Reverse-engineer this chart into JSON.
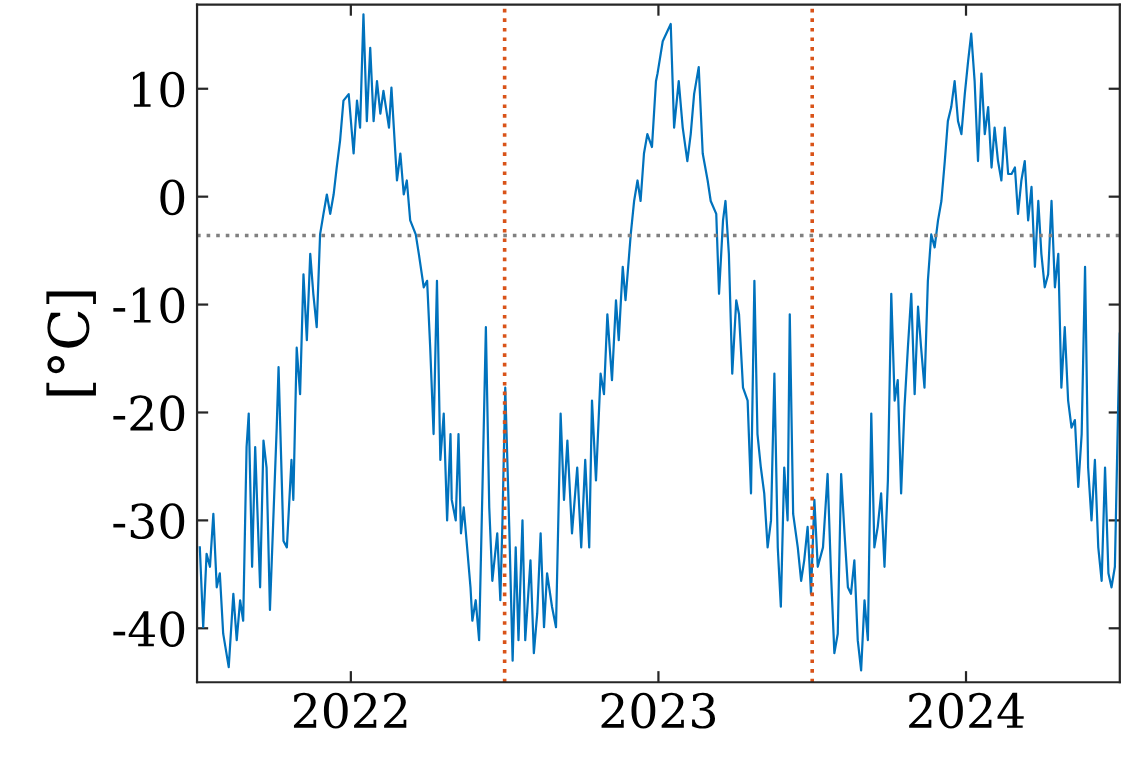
{
  "chart_data": {
    "type": "line",
    "ylabel": "[°C]",
    "xlim": [
      2021.5,
      2024.5
    ],
    "xticks": [
      2022,
      2023,
      2024
    ],
    "ylim": [
      -45,
      17.8
    ],
    "yticks": [
      -40,
      -30,
      -20,
      -10,
      0,
      10
    ],
    "line_style": "solid",
    "marker": "none",
    "ref_lines": [
      {
        "axis": "y",
        "value": -3.6,
        "color": "#808080",
        "line_style": "dotted"
      },
      {
        "axis": "x",
        "value": 2022.5,
        "color": "#d95319",
        "line_style": "dotted"
      },
      {
        "axis": "x",
        "value": 2023.5,
        "color": "#d95319",
        "line_style": "dotted"
      }
    ],
    "series": [
      {
        "color": "#0072bd",
        "x": [
          2021.509,
          2021.52,
          2021.531,
          2021.542,
          2021.553,
          2021.564,
          2021.574,
          2021.585,
          2021.603,
          2021.618,
          2021.629,
          2021.64,
          2021.65,
          2021.661,
          2021.668,
          2021.679,
          2021.689,
          2021.705,
          2021.716,
          2021.726,
          2021.737,
          2021.759,
          2021.765,
          2021.781,
          2021.792,
          2021.807,
          2021.813,
          2021.824,
          2021.835,
          2021.846,
          2021.857,
          2021.868,
          2021.878,
          2021.889,
          2021.9,
          2021.911,
          2021.922,
          2021.933,
          2021.944,
          2021.954,
          2021.965,
          2021.976,
          2021.993,
          2022.009,
          2022.02,
          2022.03,
          2022.041,
          2022.052,
          2022.063,
          2022.074,
          2022.085,
          2022.096,
          2022.106,
          2022.124,
          2022.132,
          2022.15,
          2022.161,
          2022.172,
          2022.182,
          2022.193,
          2022.211,
          2022.221,
          2022.237,
          2022.248,
          2022.258,
          2022.269,
          2022.28,
          2022.291,
          2022.302,
          2022.313,
          2022.324,
          2022.328,
          2022.341,
          2022.35,
          2022.358,
          2022.367,
          2022.378,
          2022.389,
          2022.395,
          2022.406,
          2022.417,
          2022.428,
          2022.439,
          2022.45,
          2022.46,
          2022.476,
          2022.486,
          2022.493,
          2022.502,
          2022.515,
          2022.526,
          2022.536,
          2022.545,
          2022.558,
          2022.567,
          2022.584,
          2022.595,
          2022.606,
          2022.617,
          2022.628,
          2022.638,
          2022.654,
          2022.667,
          2022.682,
          2022.693,
          2022.704,
          2022.719,
          2022.736,
          2022.749,
          2022.762,
          2022.775,
          2022.784,
          2022.797,
          2022.812,
          2022.823,
          2022.834,
          2022.849,
          2022.862,
          2022.871,
          2022.884,
          2022.893,
          2022.91,
          2022.921,
          2022.932,
          2022.942,
          2022.953,
          2022.964,
          2022.979,
          2022.992,
          2022.997,
          2023.014,
          2023.04,
          2023.051,
          2023.066,
          2023.079,
          2023.094,
          2023.105,
          2023.116,
          2023.131,
          2023.144,
          2023.16,
          2023.17,
          2023.188,
          2023.197,
          2023.21,
          2023.218,
          2023.229,
          2023.24,
          2023.253,
          2023.262,
          2023.275,
          2023.29,
          2023.301,
          2023.312,
          2023.322,
          2023.333,
          2023.344,
          2023.355,
          2023.366,
          2023.377,
          2023.388,
          2023.398,
          2023.409,
          2023.42,
          2023.427,
          2023.438,
          2023.453,
          2023.464,
          2023.474,
          2023.485,
          2023.496,
          2023.507,
          2023.518,
          2023.535,
          2023.55,
          2023.561,
          2023.572,
          2023.583,
          2023.594,
          2023.605,
          2023.616,
          2023.626,
          2023.637,
          2023.648,
          2023.659,
          2023.67,
          2023.681,
          2023.692,
          2023.702,
          2023.713,
          2023.724,
          2023.735,
          2023.746,
          2023.757,
          2023.768,
          2023.778,
          2023.789,
          2023.8,
          2023.811,
          2023.822,
          2023.833,
          2023.844,
          2023.854,
          2023.865,
          2023.876,
          2023.887,
          2023.898,
          2023.909,
          2023.92,
          2023.931,
          2023.941,
          2023.952,
          2023.963,
          2023.974,
          2023.985,
          2023.996,
          2024.007,
          2024.017,
          2024.028,
          2024.039,
          2024.05,
          2024.061,
          2024.072,
          2024.083,
          2024.093,
          2024.104,
          2024.115,
          2024.126,
          2024.137,
          2024.148,
          2024.159,
          2024.169,
          2024.18,
          2024.191,
          2024.202,
          2024.213,
          2024.224,
          2024.235,
          2024.245,
          2024.256,
          2024.267,
          2024.278,
          2024.289,
          2024.3,
          2024.31,
          2024.321,
          2024.332,
          2024.343,
          2024.354,
          2024.365,
          2024.376,
          2024.387,
          2024.397,
          2024.408,
          2024.419,
          2024.43,
          2024.441,
          2024.452,
          2024.463,
          2024.473,
          2024.484,
          2024.495,
          2024.5
        ],
        "values": [
          -32.5,
          -39.9,
          -33.1,
          -34.3,
          -29.4,
          -36.2,
          -34.9,
          -40.5,
          -43.6,
          -36.8,
          -41.1,
          -37.4,
          -39.3,
          -23.2,
          -20.1,
          -34.3,
          -23.2,
          -36.2,
          -22.6,
          -25.1,
          -38.3,
          -21.4,
          -15.8,
          -31.9,
          -32.5,
          -24.4,
          -28.1,
          -14.0,
          -18.3,
          -7.2,
          -13.3,
          -5.3,
          -9.0,
          -12.1,
          -3.5,
          -1.6,
          0.2,
          -1.6,
          0.2,
          2.7,
          5.2,
          8.9,
          9.5,
          4.0,
          8.9,
          6.4,
          16.9,
          7.0,
          13.8,
          7.0,
          10.7,
          7.7,
          9.8,
          6.4,
          10.1,
          1.5,
          4.0,
          0.2,
          1.5,
          -2.2,
          -3.5,
          -5.3,
          -8.4,
          -7.8,
          -14.0,
          -22.0,
          -7.8,
          -24.4,
          -20.1,
          -30.0,
          -22.0,
          -28.1,
          -30.0,
          -22.0,
          -31.2,
          -28.8,
          -32.5,
          -36.2,
          -39.3,
          -37.4,
          -41.1,
          -26.9,
          -12.1,
          -28.8,
          -35.6,
          -31.2,
          -37.4,
          -30.0,
          -17.7,
          -30.6,
          -43.0,
          -32.5,
          -41.1,
          -30.0,
          -41.1,
          -33.7,
          -42.3,
          -38.6,
          -31.2,
          -39.9,
          -34.9,
          -38.0,
          -39.9,
          -20.1,
          -28.1,
          -22.6,
          -31.2,
          -25.1,
          -32.5,
          -24.4,
          -32.5,
          -18.9,
          -26.3,
          -16.4,
          -18.3,
          -10.9,
          -17.0,
          -9.6,
          -13.3,
          -6.5,
          -9.6,
          -3.5,
          -0.4,
          1.5,
          -0.4,
          4.0,
          5.8,
          4.6,
          10.7,
          11.4,
          14.4,
          16.0,
          6.4,
          10.7,
          6.4,
          3.3,
          5.8,
          9.5,
          12.0,
          4.0,
          1.5,
          -0.4,
          -1.6,
          -9.0,
          -2.2,
          -0.4,
          -5.3,
          -16.4,
          -9.6,
          -10.9,
          -17.7,
          -18.9,
          -27.5,
          -7.8,
          -22.0,
          -25.1,
          -27.5,
          -32.5,
          -30.0,
          -16.4,
          -32.5,
          -38.0,
          -25.1,
          -30.0,
          -10.9,
          -29.4,
          -32.5,
          -35.6,
          -33.7,
          -30.6,
          -36.8,
          -28.1,
          -34.3,
          -32.5,
          -25.7,
          -34.9,
          -42.3,
          -40.5,
          -25.7,
          -31.2,
          -36.2,
          -36.8,
          -33.7,
          -41.1,
          -43.9,
          -37.4,
          -41.1,
          -20.1,
          -32.5,
          -30.6,
          -27.5,
          -34.3,
          -26.3,
          -9.0,
          -18.9,
          -17.0,
          -27.5,
          -19.5,
          -14.0,
          -9.0,
          -18.3,
          -10.2,
          -14.0,
          -17.7,
          -7.8,
          -3.5,
          -4.7,
          -2.2,
          -0.4,
          3.3,
          7.0,
          8.3,
          10.7,
          7.0,
          5.8,
          9.5,
          12.6,
          15.1,
          10.7,
          3.3,
          11.4,
          5.8,
          8.3,
          2.7,
          6.4,
          3.3,
          1.5,
          6.4,
          2.1,
          2.1,
          2.7,
          -1.6,
          1.5,
          3.3,
          -2.2,
          0.9,
          -6.5,
          -0.4,
          -5.3,
          -8.4,
          -7.2,
          -0.4,
          -8.4,
          -5.3,
          -17.7,
          -12.1,
          -18.9,
          -21.4,
          -20.7,
          -26.9,
          -22.0,
          -6.5,
          -25.1,
          -30.0,
          -24.4,
          -32.5,
          -35.6,
          -25.1,
          -34.9,
          -36.2,
          -34.3,
          -18.9,
          -12.7
        ]
      }
    ]
  }
}
